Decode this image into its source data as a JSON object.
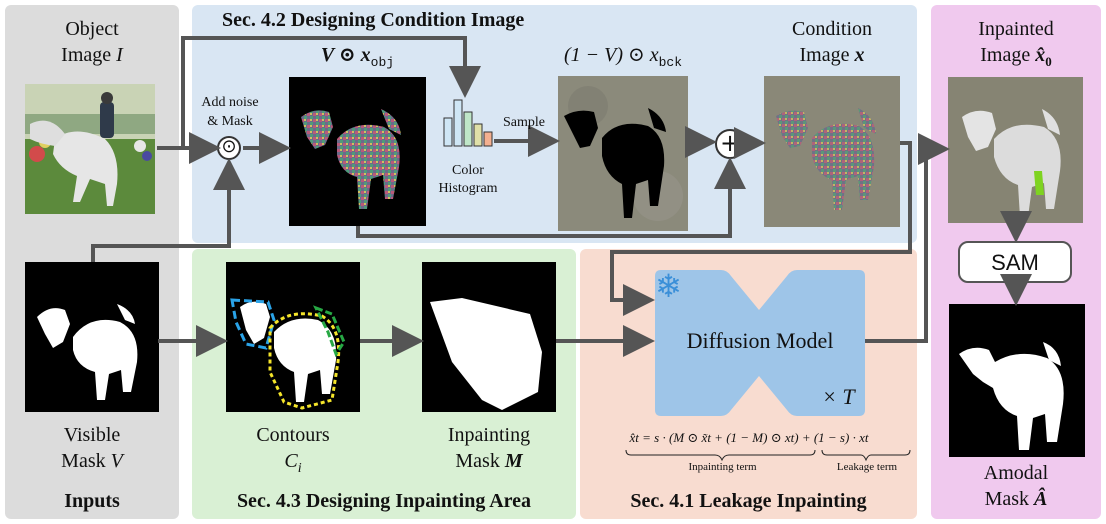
{
  "panels": {
    "inputs": {
      "title": "Inputs",
      "color": "#dcdcdc"
    },
    "condition": {
      "title": "Sec. 4.2 Designing Condition Image",
      "color": "#d9e6f3"
    },
    "inpainting_area": {
      "title": "Sec. 4.3 Designing Inpainting Area",
      "color": "#d9f0d4"
    },
    "leakage": {
      "title": "Sec. 4.1 Leakage Inpainting",
      "color": "#f8dcd0"
    },
    "output": {
      "color": "#f0c9ee"
    }
  },
  "labels": {
    "object_image": [
      "Object",
      "Image"
    ],
    "object_image_sym": "I",
    "visible_mask": [
      "Visible",
      "Mask"
    ],
    "visible_mask_sym": "V",
    "add_noise": [
      "Add noise",
      "& Mask"
    ],
    "odot": "⊙",
    "masked_object_label": "V ⊙ x",
    "masked_object_sub": "obj",
    "color_histogram": [
      "Color",
      "Histogram"
    ],
    "sample": "Sample",
    "background_label": "(1 − V) ⊙ x",
    "background_sub": "bck",
    "plus": "+",
    "condition_image": [
      "Condition",
      "Image"
    ],
    "condition_image_sym": "x",
    "contours": "Contours",
    "contours_sym": "C",
    "contours_sub": "i",
    "inpainting_mask": [
      "Inpainting",
      "Mask"
    ],
    "inpainting_mask_sym": "M",
    "diffusion_model": "Diffusion Model",
    "times_t": "× T",
    "inpainted_image": [
      "Inpainted",
      "Image"
    ],
    "inpainted_sym": "x̂",
    "inpainted_sub": "0",
    "sam": "SAM",
    "amodal_mask": [
      "Amodal",
      "Mask"
    ],
    "amodal_sym": "Â",
    "equation": "x̂t = s · (M ⊙ x̃t + (1 − M) ⊙ xt) + (1 − s) · xt",
    "inpainting_term": "Inpainting term",
    "leakage_term": "Leakage term"
  },
  "colors": {
    "arrow": "#555555",
    "diffusion": "#9ec5e8",
    "snowflake": "#3a8fd8"
  }
}
